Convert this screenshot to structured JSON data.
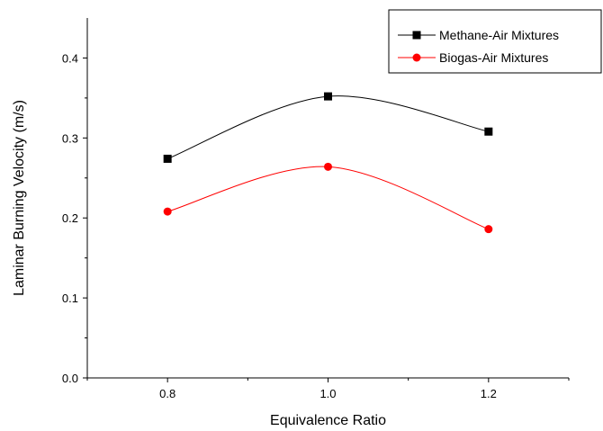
{
  "chart_data": {
    "type": "line",
    "xlabel": "Equivalence Ratio",
    "ylabel": "Laminar Burning Velocity (m/s)",
    "xlim": [
      0.7,
      1.3
    ],
    "ylim": [
      0.0,
      0.45
    ],
    "x_ticks": [
      "0.8",
      "1.0",
      "1.2"
    ],
    "x_tick_values": [
      0.8,
      1.0,
      1.2
    ],
    "y_ticks": [
      "0.0",
      "0.1",
      "0.2",
      "0.3",
      "0.4"
    ],
    "y_tick_values": [
      0.0,
      0.1,
      0.2,
      0.3,
      0.4
    ],
    "legend_position": "top-right",
    "grid": false,
    "series": [
      {
        "name": "Methane-Air Mixtures",
        "marker": "square",
        "color": "#000000",
        "x": [
          0.8,
          1.0,
          1.2
        ],
        "y": [
          0.274,
          0.352,
          0.308
        ]
      },
      {
        "name": "Biogas-Air Mixtures",
        "marker": "circle",
        "color": "#ff0000",
        "x": [
          0.8,
          1.0,
          1.2
        ],
        "y": [
          0.208,
          0.264,
          0.186
        ]
      }
    ]
  }
}
